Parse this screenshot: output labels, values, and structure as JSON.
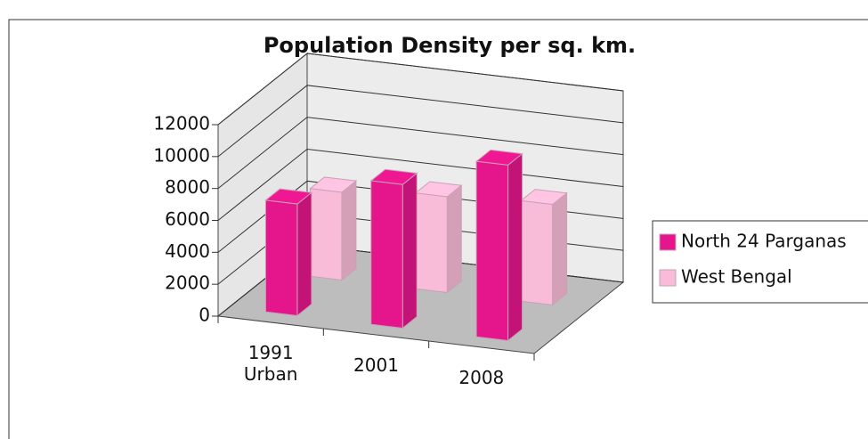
{
  "chart_data": {
    "type": "bar3d",
    "title": "Population Density per sq. km.",
    "categories": [
      "1991 Urban",
      "2001",
      "2008"
    ],
    "series": [
      {
        "name": "North 24 Parganas",
        "color": "#e5168c",
        "values": [
          7000,
          9000,
          11000
        ]
      },
      {
        "name": "West Bengal",
        "color": "#f9bcd8",
        "values": [
          5500,
          6000,
          6300
        ]
      }
    ],
    "ylim": [
      0,
      12000
    ],
    "yticks": [
      0,
      2000,
      4000,
      6000,
      8000,
      10000,
      12000
    ],
    "grid": true,
    "legend": "right"
  }
}
